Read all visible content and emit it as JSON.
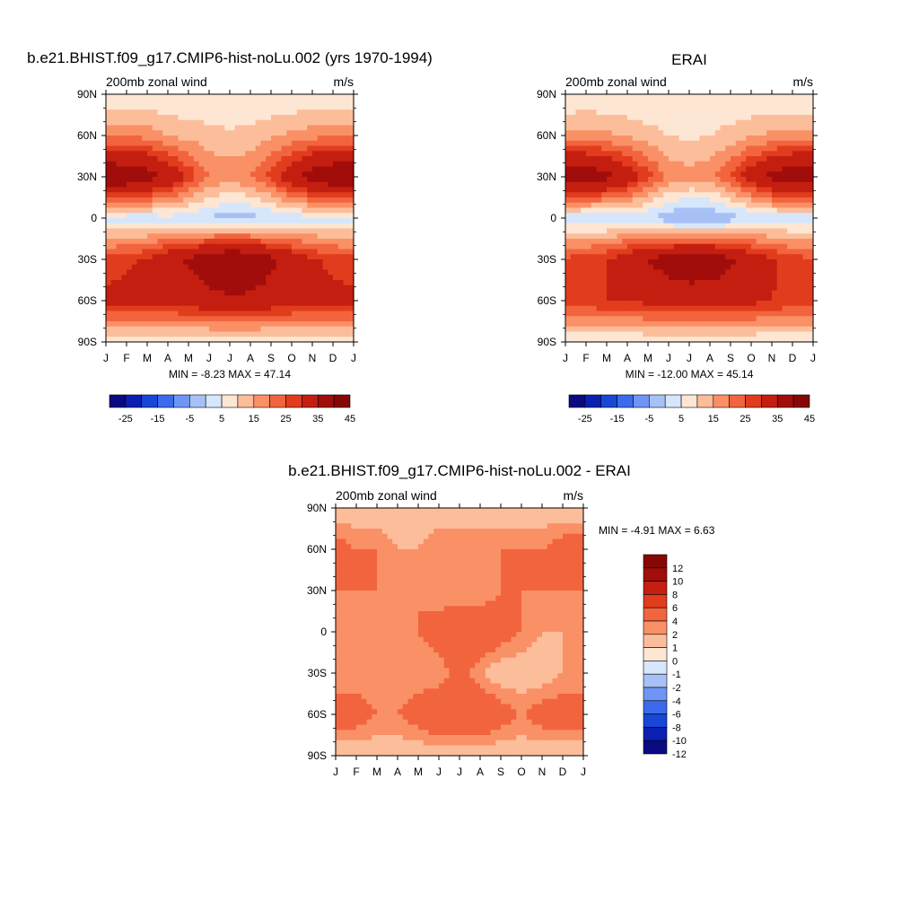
{
  "figure": {
    "panels": [
      {
        "id": "model",
        "title": "b.e21.BHIST.f09_g17.CMIP6-hist-noLu.002 (yrs 1970-1994)",
        "subtitle_left": "200mb zonal wind",
        "subtitle_right": "m/s",
        "minmax": "MIN =  -8.23 MAX =  47.14"
      },
      {
        "id": "obs",
        "title": "ERAI",
        "subtitle_left": "200mb zonal wind",
        "subtitle_right": "m/s",
        "minmax": "MIN = -12.00 MAX =  45.14"
      },
      {
        "id": "diff",
        "title": "b.e21.BHIST.f09_g17.CMIP6-hist-noLu.002 - ERAI",
        "subtitle_left": "200mb zonal wind",
        "subtitle_right": "m/s",
        "minmax": "MIN =  -4.91 MAX =   6.63"
      }
    ],
    "x_tick_labels": [
      "J",
      "F",
      "M",
      "A",
      "M",
      "J",
      "J",
      "A",
      "S",
      "O",
      "N",
      "D",
      "J"
    ],
    "y_tick_labels": [
      "90N",
      "60N",
      "30N",
      "0",
      "30S",
      "60S",
      "90S"
    ],
    "colorbar_main": {
      "colors": [
        "#0a0a82",
        "#0b1fb0",
        "#1747d8",
        "#3b6bec",
        "#6f95f5",
        "#a7c1f7",
        "#d6e6fb",
        "#fde6d3",
        "#fcbd9a",
        "#fa9066",
        "#f2643e",
        "#e13c1d",
        "#c41e10",
        "#a10d0a",
        "#870707"
      ],
      "labels": [
        "-25",
        "-15",
        "-5",
        "5",
        "15",
        "25",
        "35",
        "45"
      ]
    },
    "colorbar_diff": {
      "colors": [
        "#0a0a82",
        "#0b1fb0",
        "#1747d8",
        "#3b6bec",
        "#6f95f5",
        "#a7c1f7",
        "#d6e6fb",
        "#fde6d3",
        "#fcbd9a",
        "#fa9066",
        "#f2643e",
        "#e13c1d",
        "#c41e10",
        "#a10d0a",
        "#870707"
      ],
      "labels": [
        "-12",
        "-10",
        "-8",
        "-6",
        "-4",
        "-2",
        "-1",
        "0",
        "1",
        "2",
        "4",
        "6",
        "8",
        "10",
        "12"
      ]
    }
  },
  "chart_data": [
    {
      "type": "heatmap",
      "title": "b.e21.BHIST.f09_g17.CMIP6-hist-noLu.002 (yrs 1970-1994)",
      "variable": "200mb zonal wind",
      "units": "m/s",
      "x": [
        "J",
        "F",
        "M",
        "A",
        "M",
        "J",
        "J",
        "A",
        "S",
        "O",
        "N",
        "D",
        "J"
      ],
      "y": [
        "90S",
        "60S",
        "30S",
        "0",
        "30N",
        "60N",
        "90N"
      ],
      "values": [
        [
          0,
          0,
          0,
          0,
          0,
          0,
          0,
          0,
          0,
          0,
          0,
          0,
          0
        ],
        [
          27,
          27,
          27,
          28,
          30,
          32,
          33,
          33,
          31,
          29,
          28,
          27,
          27
        ],
        [
          22,
          24,
          26,
          31,
          36,
          41,
          46,
          43,
          37,
          31,
          26,
          23,
          22
        ],
        [
          -2,
          -3,
          -3,
          -2,
          -3,
          -6,
          -7,
          -7,
          -5,
          -3,
          -2,
          -2,
          -2
        ],
        [
          45,
          44,
          40,
          33,
          24,
          15,
          13,
          15,
          22,
          32,
          40,
          45,
          45
        ],
        [
          14,
          14,
          13,
          10,
          8,
          7,
          6,
          7,
          9,
          11,
          13,
          14,
          14
        ],
        [
          0,
          0,
          0,
          0,
          0,
          0,
          0,
          0,
          0,
          0,
          0,
          0,
          0
        ]
      ],
      "min": -8.23,
      "max": 47.14
    },
    {
      "type": "heatmap",
      "title": "ERAI",
      "variable": "200mb zonal wind",
      "units": "m/s",
      "x": [
        "J",
        "F",
        "M",
        "A",
        "M",
        "J",
        "J",
        "A",
        "S",
        "O",
        "N",
        "D",
        "J"
      ],
      "y": [
        "90S",
        "60S",
        "30S",
        "0",
        "30N",
        "60N",
        "90N"
      ],
      "values": [
        [
          0,
          0,
          0,
          0,
          0,
          0,
          0,
          0,
          0,
          0,
          0,
          0,
          0
        ],
        [
          24,
          24,
          25,
          26,
          27,
          28,
          29,
          29,
          28,
          27,
          25,
          24,
          24
        ],
        [
          21,
          23,
          25,
          30,
          35,
          40,
          43,
          42,
          37,
          31,
          26,
          22,
          21
        ],
        [
          -3,
          -4,
          -4,
          -3,
          -5,
          -9,
          -11,
          -11,
          -8,
          -5,
          -3,
          -3,
          -3
        ],
        [
          43,
          42,
          38,
          31,
          22,
          14,
          12,
          14,
          20,
          30,
          38,
          43,
          43
        ],
        [
          11,
          12,
          11,
          9,
          7,
          5,
          4,
          5,
          7,
          9,
          11,
          11,
          11
        ],
        [
          0,
          0,
          0,
          0,
          0,
          0,
          0,
          0,
          0,
          0,
          0,
          0,
          0
        ]
      ],
      "min": -12.0,
      "max": 45.14
    },
    {
      "type": "heatmap",
      "title": "b.e21.BHIST.f09_g17.CMIP6-hist-noLu.002 - ERAI",
      "variable": "200mb zonal wind",
      "units": "m/s",
      "x": [
        "J",
        "F",
        "M",
        "A",
        "M",
        "J",
        "J",
        "A",
        "S",
        "O",
        "N",
        "D",
        "J"
      ],
      "y": [
        "90S",
        "60S",
        "30S",
        "0",
        "30N",
        "60N",
        "90N"
      ],
      "values": [
        [
          0,
          0,
          0,
          0,
          0,
          0,
          0,
          0,
          0,
          0,
          0,
          0,
          0
        ],
        [
          3,
          3,
          2,
          2,
          3,
          4,
          4,
          4,
          3,
          2,
          3,
          3,
          3
        ],
        [
          1,
          1,
          1,
          1,
          1,
          1,
          3,
          1,
          0,
          0,
          0,
          1,
          1
        ],
        [
          1,
          1,
          1,
          1,
          2,
          3,
          4,
          4,
          3,
          2,
          1,
          1,
          1
        ],
        [
          2,
          2,
          2,
          2,
          2,
          1,
          1,
          1,
          2,
          2,
          2,
          2,
          2
        ],
        [
          3,
          2,
          2,
          1,
          1,
          2,
          2,
          2,
          2,
          2,
          2,
          3,
          3
        ],
        [
          0,
          0,
          0,
          0,
          0,
          0,
          0,
          0,
          0,
          0,
          0,
          0,
          0
        ]
      ],
      "min": -4.91,
      "max": 6.63
    }
  ]
}
